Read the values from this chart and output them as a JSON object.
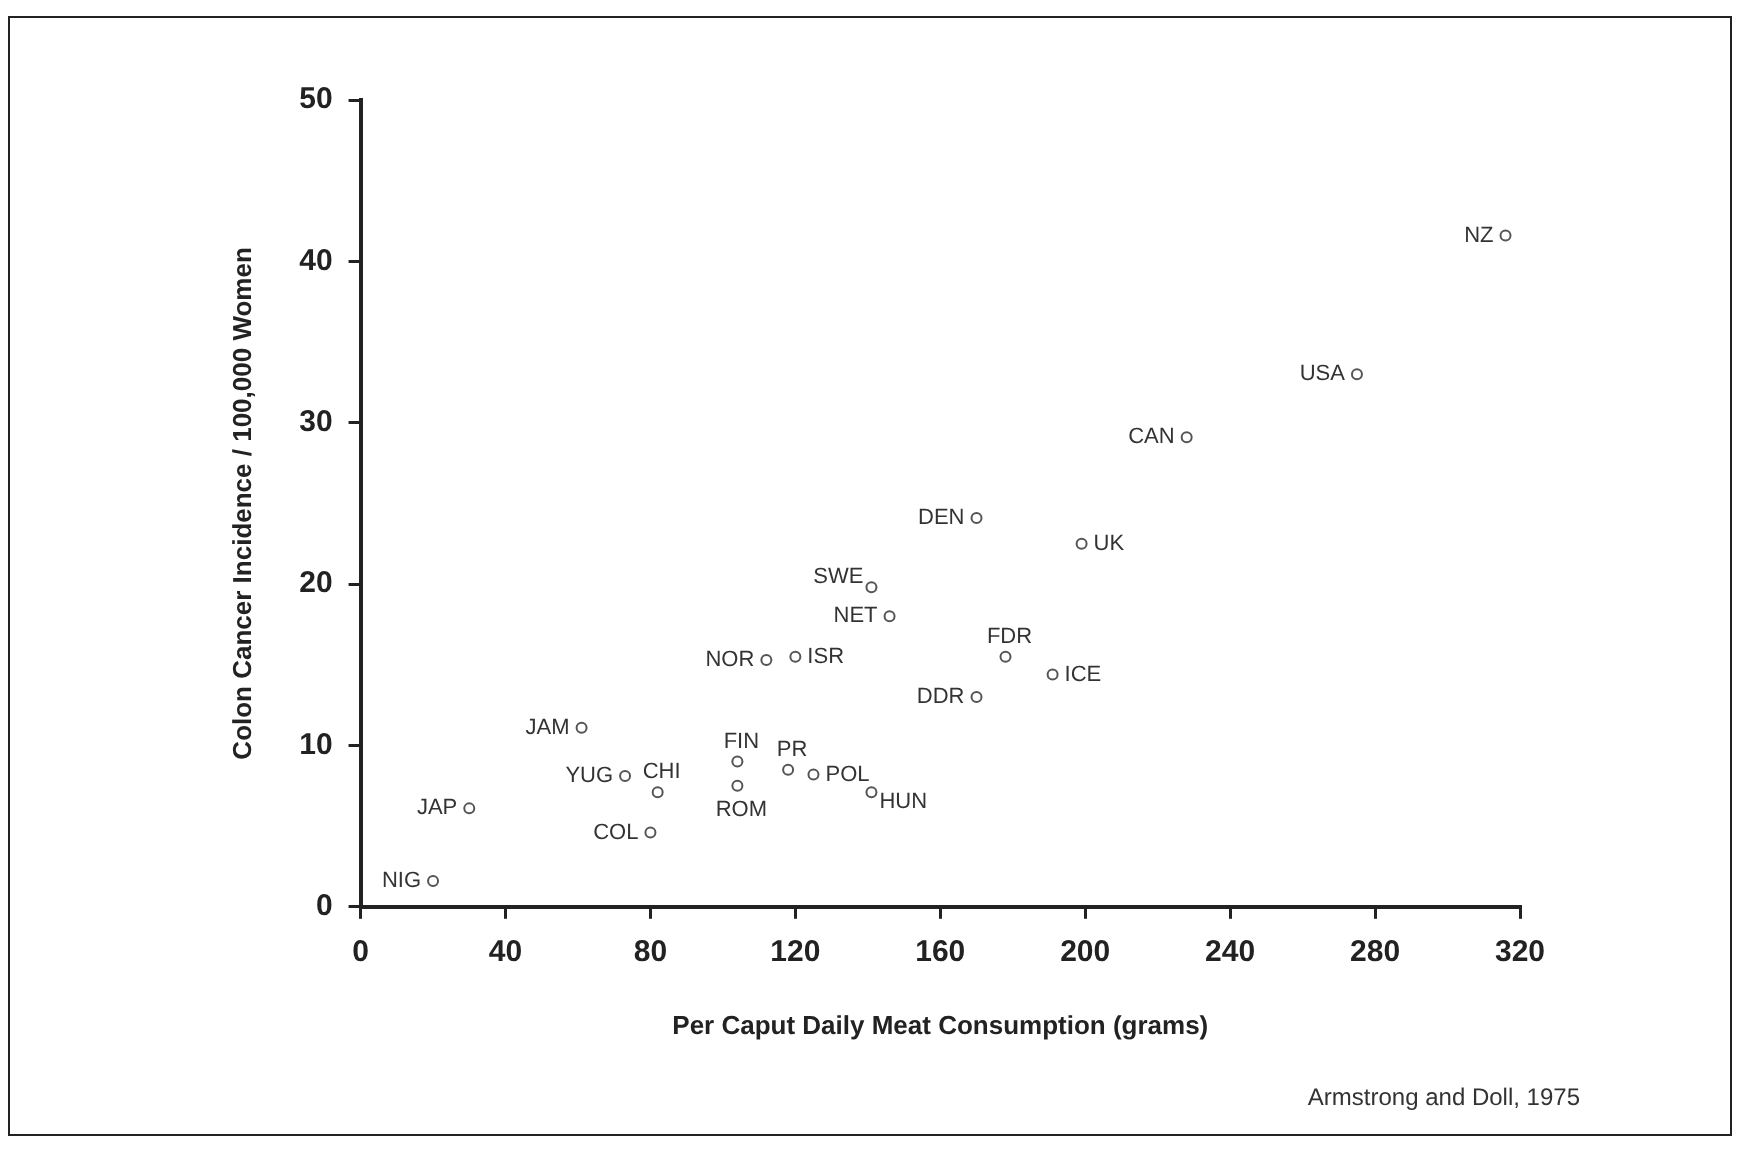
{
  "chart_data": {
    "type": "scatter",
    "xlabel": "Per Caput Daily Meat Consumption (grams)",
    "ylabel": "Colon Cancer Incidence / 100,000 Women",
    "x": [
      316,
      275,
      228,
      170,
      199,
      141,
      146,
      112,
      120,
      178,
      191,
      170,
      61,
      104,
      118,
      125,
      73,
      82,
      141,
      104,
      30,
      80,
      20
    ],
    "series": [
      {
        "color": "#555555",
        "values": [
          41.6,
          33.0,
          29.1,
          24.1,
          22.5,
          19.8,
          18.0,
          15.3,
          15.5,
          15.5,
          14.4,
          13.0,
          11.1,
          9.0,
          8.5,
          8.2,
          8.1,
          7.1,
          7.1,
          7.5,
          6.1,
          4.6,
          1.6
        ]
      }
    ],
    "marker": "circle",
    "grid": false,
    "legend": false,
    "xlim": [
      0,
      320
    ],
    "xticks": [
      0,
      40,
      80,
      120,
      160,
      200,
      240,
      280,
      320
    ],
    "ylim": [
      0,
      50
    ],
    "yticks": [
      0,
      10,
      20,
      30,
      40,
      50
    ],
    "annotations": [
      {
        "text": "NZ",
        "x": 316,
        "y": 41.6
      },
      {
        "text": "USA",
        "x": 275,
        "y": 33.0
      },
      {
        "text": "CAN",
        "x": 228,
        "y": 29.1
      },
      {
        "text": "DEN",
        "x": 170,
        "y": 24.1
      },
      {
        "text": "UK",
        "x": 199,
        "y": 22.5
      },
      {
        "text": "SWE",
        "x": 141,
        "y": 19.8
      },
      {
        "text": "NET",
        "x": 146,
        "y": 18.0
      },
      {
        "text": "NOR",
        "x": 112,
        "y": 15.3
      },
      {
        "text": "ISR",
        "x": 120,
        "y": 15.5
      },
      {
        "text": "FDR",
        "x": 178,
        "y": 15.5
      },
      {
        "text": "ICE",
        "x": 191,
        "y": 14.4
      },
      {
        "text": "DDR",
        "x": 170,
        "y": 13.0
      },
      {
        "text": "JAM",
        "x": 61,
        "y": 11.1
      },
      {
        "text": "FIN",
        "x": 104,
        "y": 9.0
      },
      {
        "text": "PR",
        "x": 118,
        "y": 8.5
      },
      {
        "text": "POL",
        "x": 125,
        "y": 8.2
      },
      {
        "text": "YUG",
        "x": 73,
        "y": 8.1
      },
      {
        "text": "CHI",
        "x": 82,
        "y": 7.1
      },
      {
        "text": "HUN",
        "x": 141,
        "y": 7.1
      },
      {
        "text": "ROM",
        "x": 104,
        "y": 7.5
      },
      {
        "text": "JAP",
        "x": 30,
        "y": 6.1
      },
      {
        "text": "COL",
        "x": 80,
        "y": 4.6
      },
      {
        "text": "NIG",
        "x": 20,
        "y": 1.6
      },
      "Armstrong and Doll, 1975"
    ]
  }
}
